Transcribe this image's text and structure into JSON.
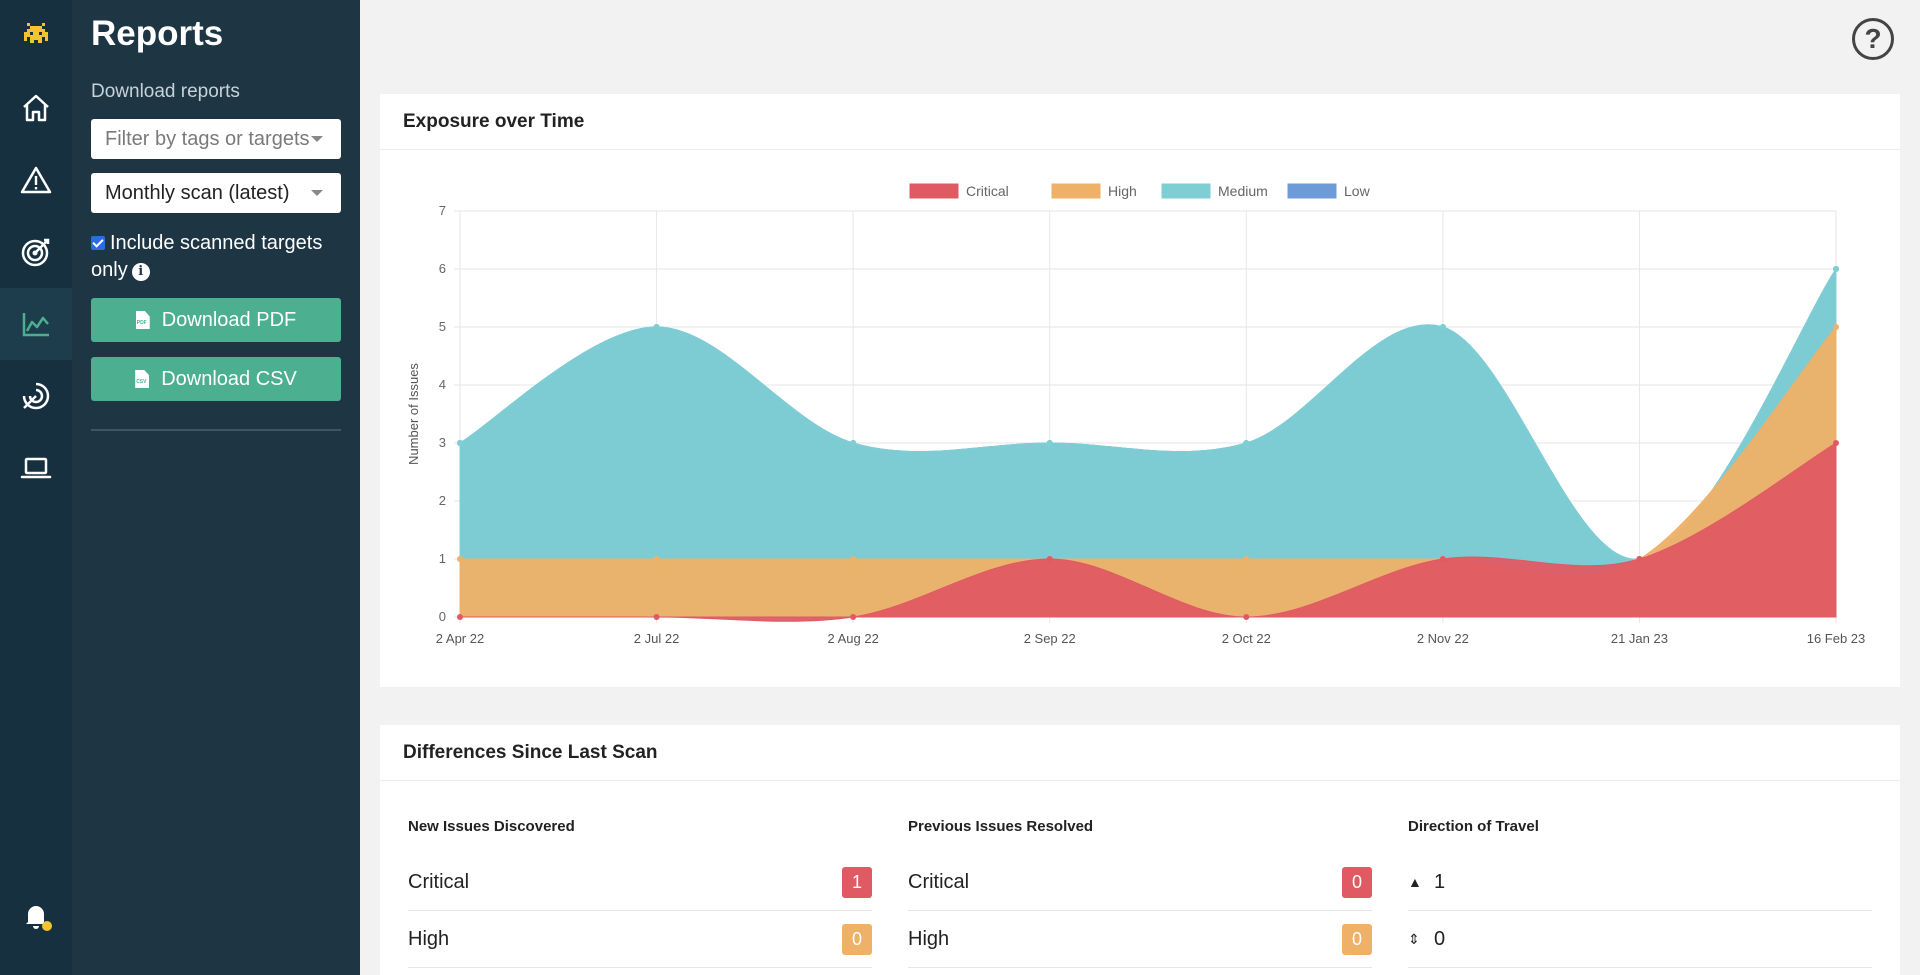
{
  "rail": {
    "items": [
      {
        "name": "logo-icon"
      },
      {
        "name": "home-icon"
      },
      {
        "name": "warning-icon"
      },
      {
        "name": "target-icon"
      },
      {
        "name": "chart-icon",
        "active": true
      },
      {
        "name": "radar-icon"
      },
      {
        "name": "laptop-icon"
      },
      {
        "name": "bell-icon"
      }
    ]
  },
  "panel": {
    "title": "Reports",
    "subtitle": "Download reports",
    "filter_placeholder": "Filter by tags or targets",
    "scan_select": "Monthly scan (latest)",
    "include_label": "Include scanned targets only",
    "download_pdf": "Download PDF",
    "download_csv": "Download CSV",
    "pdf_icon_text": "PDF",
    "csv_icon_text": "CSV"
  },
  "help_label": "?",
  "exposure": {
    "title": "Exposure over Time"
  },
  "chart_data": {
    "type": "area",
    "x": [
      "2 Apr 22",
      "2 Jul 22",
      "2 Aug 22",
      "2 Sep 22",
      "2 Oct 22",
      "2 Nov 22",
      "21 Jan 23",
      "16 Feb 23"
    ],
    "ylabel": "Number of Issues",
    "ylim": [
      0,
      7
    ],
    "yticks": [
      0,
      1,
      2,
      3,
      4,
      5,
      6,
      7
    ],
    "grid": true,
    "legend_position": "top",
    "stacked": true,
    "series": [
      {
        "name": "Critical",
        "color": "#e05a63",
        "values": [
          0,
          0,
          0,
          1,
          0,
          1,
          1,
          3
        ]
      },
      {
        "name": "High",
        "color": "#efb067",
        "values": [
          1,
          1,
          1,
          0,
          1,
          0,
          0,
          2
        ]
      },
      {
        "name": "Medium",
        "color": "#7ecfd3",
        "values": [
          2,
          4,
          2,
          2,
          2,
          4,
          0,
          1
        ]
      },
      {
        "name": "Low",
        "color": "#6c9bd8",
        "values": [
          0,
          0,
          0,
          0,
          0,
          0,
          0,
          0
        ]
      }
    ]
  },
  "differences": {
    "title": "Differences Since Last Scan",
    "new": {
      "heading": "New Issues Discovered",
      "rows": [
        {
          "label": "Critical",
          "value": "1"
        },
        {
          "label": "High",
          "value": "0"
        }
      ]
    },
    "resolved": {
      "heading": "Previous Issues Resolved",
      "rows": [
        {
          "label": "Critical",
          "value": "0"
        },
        {
          "label": "High",
          "value": "0"
        }
      ]
    },
    "direction": {
      "heading": "Direction of Travel",
      "rows": [
        {
          "arrow": "▲",
          "value": "1"
        },
        {
          "arrow": "⇕",
          "value": "0"
        }
      ]
    }
  },
  "colors": {
    "rail_bg": "#16303f",
    "panel_bg": "#1e3544",
    "accent": "#4caf8f",
    "critical": "#e05a63",
    "high": "#efb067",
    "notification_dot": "#f4c430"
  }
}
